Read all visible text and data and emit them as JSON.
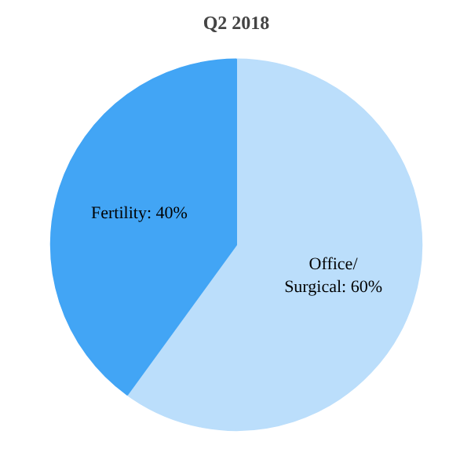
{
  "chart_data": {
    "type": "pie",
    "title": "Q2 2018",
    "categories": [
      "Office/\nSurgical",
      "Fertility"
    ],
    "values": [
      60,
      40
    ],
    "colors": [
      "#bbdefb",
      "#42a5f5"
    ],
    "value_labels": [
      "60%",
      "40%"
    ]
  }
}
